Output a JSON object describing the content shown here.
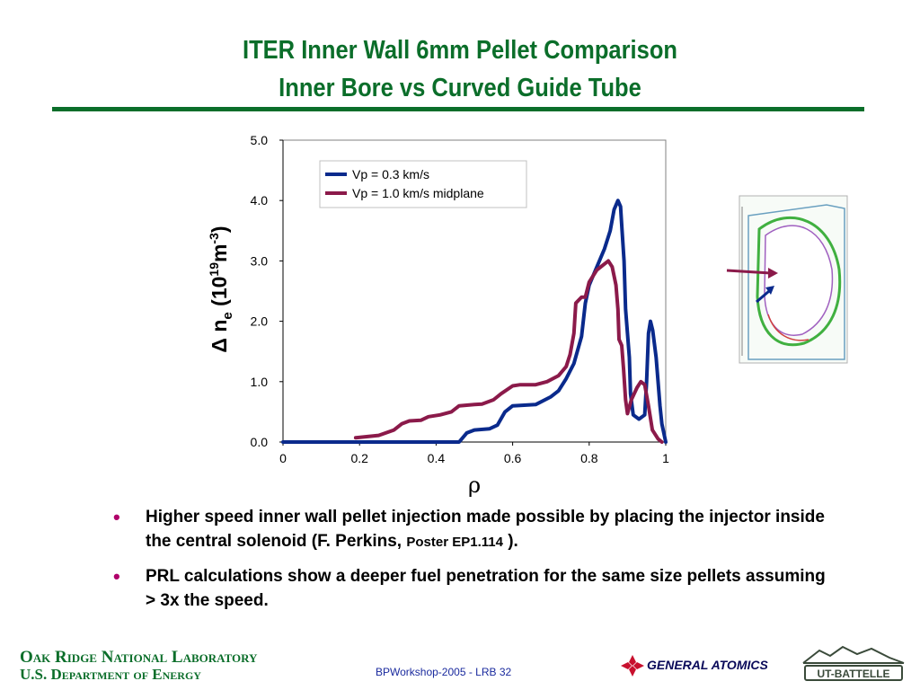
{
  "slide": {
    "title_line1": "ITER  Inner Wall 6mm Pellet Comparison",
    "title_line2": "Inner Bore vs Curved Guide Tube"
  },
  "colors": {
    "title_green": "#0b6e2a",
    "series_blue": "#0a2a8c",
    "series_maroon": "#8b1a4a",
    "bullet_magenta": "#b0006a"
  },
  "chart_data": {
    "type": "line",
    "title": "",
    "xlabel": "ρ",
    "ylabel_parts": [
      "Δ n",
      "e",
      " (10",
      "19",
      "m",
      "-3",
      ")"
    ],
    "xlim": [
      0,
      1
    ],
    "ylim": [
      0,
      5
    ],
    "x_ticks": [
      "0",
      "0.2",
      "0.4",
      "0.6",
      "0.8",
      "1"
    ],
    "y_ticks": [
      "0.0",
      "1.0",
      "2.0",
      "3.0",
      "4.0",
      "5.0"
    ],
    "grid": false,
    "legend_position": "top-center",
    "series": [
      {
        "name": "Vp = 0.3 km/s",
        "color": "#0a2a8c",
        "points": [
          [
            0.0,
            0.0
          ],
          [
            0.4,
            0.0
          ],
          [
            0.46,
            0.0
          ],
          [
            0.48,
            0.15
          ],
          [
            0.5,
            0.2
          ],
          [
            0.54,
            0.22
          ],
          [
            0.56,
            0.28
          ],
          [
            0.58,
            0.5
          ],
          [
            0.6,
            0.6
          ],
          [
            0.66,
            0.62
          ],
          [
            0.7,
            0.75
          ],
          [
            0.72,
            0.85
          ],
          [
            0.74,
            1.05
          ],
          [
            0.76,
            1.3
          ],
          [
            0.78,
            1.75
          ],
          [
            0.79,
            2.3
          ],
          [
            0.8,
            2.6
          ],
          [
            0.82,
            2.9
          ],
          [
            0.84,
            3.2
          ],
          [
            0.855,
            3.5
          ],
          [
            0.865,
            3.85
          ],
          [
            0.875,
            4.0
          ],
          [
            0.882,
            3.9
          ],
          [
            0.886,
            3.5
          ],
          [
            0.891,
            3.0
          ],
          [
            0.895,
            2.2
          ],
          [
            0.9,
            1.8
          ],
          [
            0.905,
            1.4
          ],
          [
            0.908,
            0.8
          ],
          [
            0.915,
            0.45
          ],
          [
            0.93,
            0.38
          ],
          [
            0.945,
            0.45
          ],
          [
            0.95,
            1.0
          ],
          [
            0.955,
            1.8
          ],
          [
            0.96,
            2.0
          ],
          [
            0.966,
            1.85
          ],
          [
            0.975,
            1.4
          ],
          [
            0.985,
            0.6
          ],
          [
            0.99,
            0.3
          ],
          [
            1.0,
            0.0
          ]
        ]
      },
      {
        "name": "Vp = 1.0 km/s  midplane",
        "color": "#8b1a4a",
        "points": [
          [
            0.19,
            0.07
          ],
          [
            0.25,
            0.11
          ],
          [
            0.29,
            0.2
          ],
          [
            0.31,
            0.3
          ],
          [
            0.33,
            0.35
          ],
          [
            0.36,
            0.36
          ],
          [
            0.38,
            0.42
          ],
          [
            0.41,
            0.45
          ],
          [
            0.44,
            0.5
          ],
          [
            0.46,
            0.6
          ],
          [
            0.5,
            0.62
          ],
          [
            0.52,
            0.63
          ],
          [
            0.55,
            0.7
          ],
          [
            0.57,
            0.8
          ],
          [
            0.6,
            0.93
          ],
          [
            0.62,
            0.95
          ],
          [
            0.66,
            0.95
          ],
          [
            0.69,
            1.0
          ],
          [
            0.72,
            1.1
          ],
          [
            0.74,
            1.25
          ],
          [
            0.75,
            1.45
          ],
          [
            0.76,
            1.8
          ],
          [
            0.765,
            2.3
          ],
          [
            0.78,
            2.4
          ],
          [
            0.79,
            2.4
          ],
          [
            0.8,
            2.65
          ],
          [
            0.82,
            2.85
          ],
          [
            0.84,
            2.95
          ],
          [
            0.85,
            3.0
          ],
          [
            0.86,
            2.9
          ],
          [
            0.87,
            2.6
          ],
          [
            0.875,
            2.2
          ],
          [
            0.878,
            1.7
          ],
          [
            0.885,
            1.6
          ],
          [
            0.89,
            1.2
          ],
          [
            0.895,
            0.7
          ],
          [
            0.9,
            0.47
          ],
          [
            0.91,
            0.7
          ],
          [
            0.925,
            0.9
          ],
          [
            0.935,
            1.0
          ],
          [
            0.945,
            0.95
          ],
          [
            0.955,
            0.6
          ],
          [
            0.965,
            0.2
          ],
          [
            0.98,
            0.05
          ],
          [
            0.99,
            0.0
          ]
        ]
      }
    ]
  },
  "bullets": [
    {
      "text": "Higher speed inner wall pellet injection made possible by placing the injector inside the central solenoid (F. Perkins, ",
      "small": "Poster EP1.114",
      "end": " )."
    },
    {
      "text": "PRL calculations show a deeper fuel penetration for the same size pellets assuming > 3x the speed.",
      "small": "",
      "end": ""
    }
  ],
  "footer": {
    "org_line1": "Oak Ridge National Laboratory",
    "org_line2": "U.S. Department of Energy",
    "center": "BPWorkshop-2005  - LRB  32",
    "ga_logo": "GENERAL ATOMICS",
    "utb_logo": "UT-BATTELLE"
  },
  "icons": {
    "bullet": "•",
    "ga_logo": "ga-diamond-logo",
    "utb_logo": "ut-battelle-logo",
    "diagram": "iter-cross-section"
  }
}
